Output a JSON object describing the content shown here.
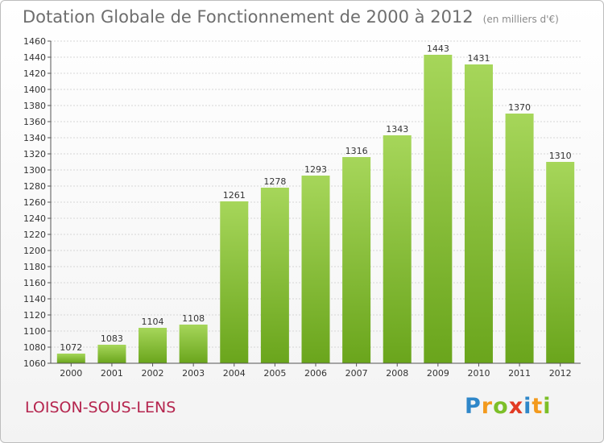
{
  "header": {
    "title": "Dotation Globale de Fonctionnement de 2000 à 2012",
    "subtitle": "(en milliers d'€)"
  },
  "footer": {
    "city": "LOISON-SOUS-LENS",
    "logo": "Proxiti"
  },
  "colors": {
    "bar_light": "#a6d65a",
    "bar_dark": "#6aa51c",
    "city": "#b5254e"
  },
  "chart_data": {
    "type": "bar",
    "title": "Dotation Globale de Fonctionnement de 2000 à 2012",
    "subtitle": "(en milliers d'€)",
    "xlabel": "",
    "ylabel": "",
    "categories": [
      "2000",
      "2001",
      "2002",
      "2003",
      "2004",
      "2005",
      "2006",
      "2007",
      "2008",
      "2009",
      "2010",
      "2011",
      "2012"
    ],
    "values": [
      1072,
      1083,
      1104,
      1108,
      1261,
      1278,
      1293,
      1316,
      1343,
      1443,
      1431,
      1370,
      1310
    ],
    "ylim": [
      1060,
      1460
    ],
    "yticks": [
      1060,
      1080,
      1100,
      1120,
      1140,
      1160,
      1180,
      1200,
      1220,
      1240,
      1260,
      1280,
      1300,
      1320,
      1340,
      1360,
      1380,
      1400,
      1420,
      1440,
      1460
    ],
    "grid": true
  }
}
